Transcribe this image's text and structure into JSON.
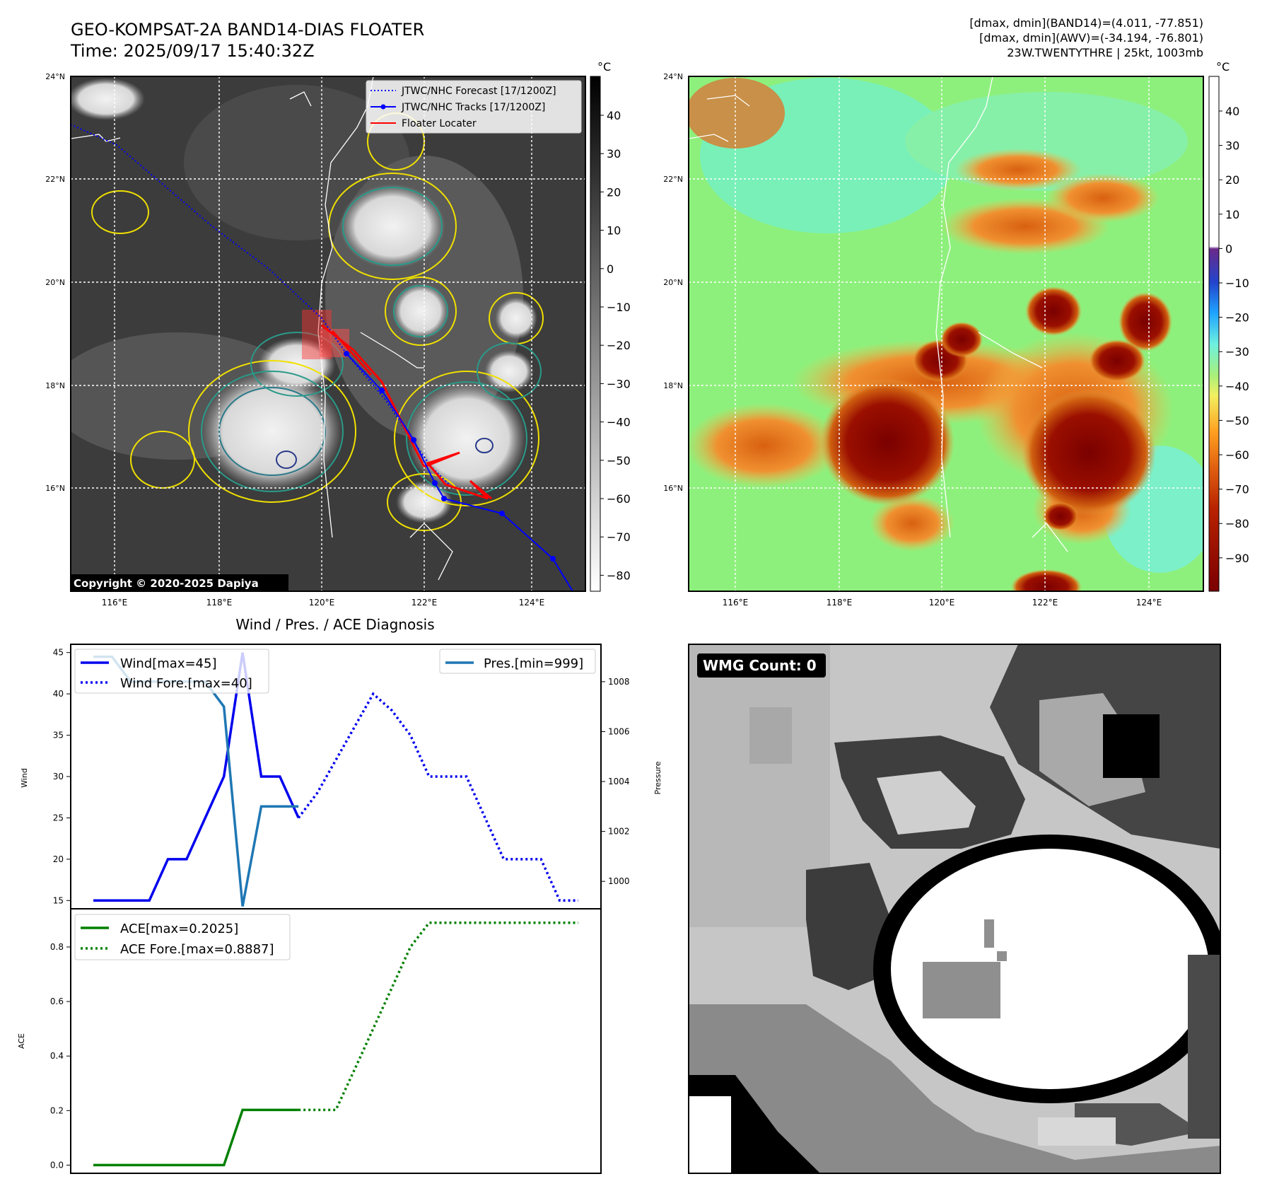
{
  "header": {
    "title_line1": "GEO-KOMPSAT-2A BAND14-DIAS FLOATER",
    "title_line2": "Time: 2025/09/17 15:40:32Z",
    "info_line1": "[dmax, dmin](BAND14)=(4.011, -77.851)",
    "info_line2": "[dmax, dmin](AWV)=(-34.194, -76.801)",
    "info_line3": "23W.TWENTYTHRE | 25kt, 1003mb"
  },
  "map_ir": {
    "lon_ticks": [
      "116°E",
      "118°E",
      "120°E",
      "122°E",
      "124°E"
    ],
    "lat_ticks": [
      "24°N",
      "22°N",
      "20°N",
      "18°N",
      "16°N"
    ],
    "legend": [
      "JTWC/NHC Forecast [17/1200Z]",
      "JTWC/NHC Tracks [17/1200Z]",
      "Floater Locater"
    ],
    "copyright": "Copyright © 2020-2025 Dapiya",
    "colorbar_unit": "°C",
    "colorbar_ticks": [
      "40",
      "30",
      "20",
      "10",
      "0",
      "−10",
      "−20",
      "−30",
      "−40",
      "−50",
      "−60",
      "−70",
      "−80"
    ],
    "colors": {
      "forecast": "#0000ff",
      "track": "#0000ff",
      "locator": "#ff0000",
      "contour_yellow": "#f0e000",
      "contour_teal": "#2a9a8a"
    }
  },
  "map_wv": {
    "lon_ticks": [
      "116°E",
      "118°E",
      "120°E",
      "122°E",
      "124°E"
    ],
    "lat_ticks": [
      "24°N",
      "22°N",
      "20°N",
      "18°N",
      "16°N"
    ],
    "colorbar_unit": "°C",
    "colorbar_ticks": [
      "40",
      "30",
      "20",
      "10",
      "0",
      "−10",
      "−20",
      "−30",
      "−40",
      "−50",
      "−60",
      "−70",
      "−80",
      "−90"
    ]
  },
  "diag": {
    "title": "Wind / Pres. / ACE Diagnosis",
    "wind_label": "Wind",
    "pressure_label": "Pressure",
    "ace_label": "ACE",
    "wind_legend": [
      "Wind[max=45]",
      "Wind Fore.[max=40]"
    ],
    "pres_legend": "Pres.[min=999]",
    "ace_legend": [
      "ACE[max=0.2025]",
      "ACE Fore.[max=0.8887]"
    ],
    "colors": {
      "wind": "#0000ee",
      "pres": "#1f77b4",
      "ace": "#008000"
    }
  },
  "wmg": {
    "label": "WMG Count: 0"
  },
  "chart_data": [
    {
      "type": "line",
      "series": [
        {
          "name": "Wind[max=45]",
          "x": [
            0,
            1,
            2,
            3,
            4,
            5,
            6,
            7,
            8,
            9,
            10,
            11
          ],
          "values": [
            15,
            15,
            15,
            15,
            20,
            20,
            25,
            30,
            45,
            30,
            30,
            25
          ]
        },
        {
          "name": "Wind Fore.[max=40]",
          "x": [
            11,
            12,
            13,
            14,
            15,
            16,
            17,
            18,
            19,
            20,
            21,
            22,
            23,
            24,
            25,
            26
          ],
          "values": [
            25,
            28,
            32,
            36,
            40,
            38,
            35,
            30,
            30,
            30,
            25,
            20,
            20,
            20,
            15,
            15
          ]
        }
      ],
      "ylabel": "Wind",
      "ylim": [
        14,
        46
      ],
      "yticks": [
        15,
        20,
        25,
        30,
        35,
        40,
        45
      ]
    },
    {
      "type": "line",
      "series": [
        {
          "name": "Pres.[min=999]",
          "x": [
            0,
            1,
            2,
            3,
            4,
            5,
            6,
            7,
            8,
            9,
            10,
            11
          ],
          "values": [
            1009,
            1009,
            1008,
            1008,
            1008,
            1008,
            1008,
            1007,
            999,
            1003,
            1003,
            1003
          ]
        }
      ],
      "ylabel": "Pressure",
      "ylim": [
        998.9,
        1009.5
      ],
      "yticks": [
        1000,
        1002,
        1004,
        1006,
        1008
      ]
    },
    {
      "type": "line",
      "series": [
        {
          "name": "ACE[max=0.2025]",
          "x": [
            0,
            1,
            2,
            3,
            4,
            5,
            6,
            7,
            8,
            9,
            10,
            11
          ],
          "values": [
            0,
            0,
            0,
            0,
            0,
            0,
            0,
            0,
            0.2025,
            0.2025,
            0.2025,
            0.2025
          ]
        },
        {
          "name": "ACE Fore.[max=0.8887]",
          "x": [
            11,
            12,
            13,
            14,
            15,
            16,
            17,
            18,
            19,
            20,
            21,
            22,
            23,
            24,
            25,
            26
          ],
          "values": [
            0.2025,
            0.2025,
            0.2025,
            0.35,
            0.5,
            0.65,
            0.8,
            0.8887,
            0.8887,
            0.8887,
            0.8887,
            0.8887,
            0.8887,
            0.8887,
            0.8887,
            0.8887
          ]
        }
      ],
      "ylabel": "ACE",
      "ylim": [
        -0.03,
        0.94
      ],
      "yticks": [
        0.0,
        0.2,
        0.4,
        0.6,
        0.8
      ]
    }
  ]
}
